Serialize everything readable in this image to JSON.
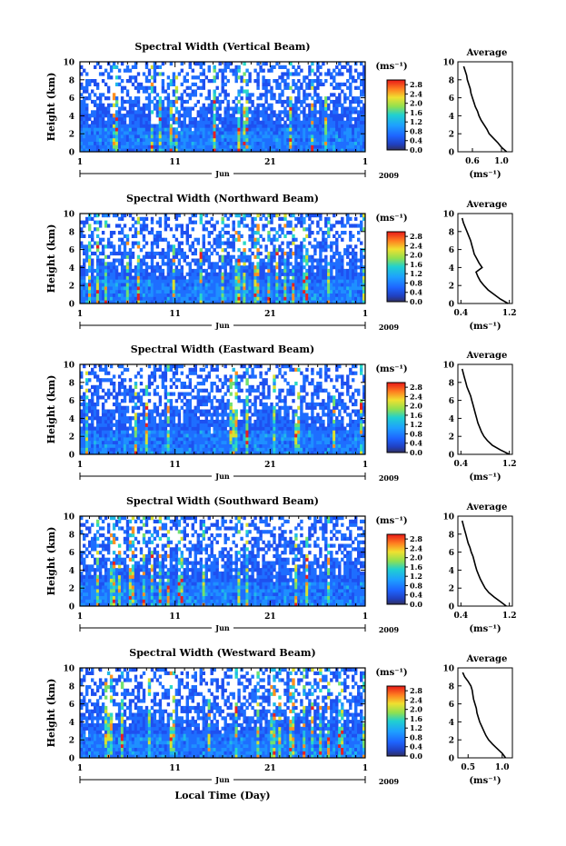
{
  "figure": {
    "xlabel": "Local Time (Day)"
  },
  "colorbar": {
    "unit_label": "(ms⁻¹)",
    "ticks": [
      "2.8",
      "2.4",
      "2.0",
      "1.6",
      "1.2",
      "0.8",
      "0.4",
      "0.0"
    ]
  },
  "chart_data": [
    {
      "type": "heatmap",
      "title": "Spectral Width (Vertical Beam)",
      "ylabel": "Height (km)",
      "ylim": [
        0,
        10
      ],
      "yticks": [
        "0",
        "2",
        "4",
        "6",
        "8",
        "10"
      ],
      "xticks": [
        "1",
        "11",
        "21",
        "1"
      ],
      "xlim_days": [
        1,
        31
      ],
      "month_label": "Jun",
      "year_label": "2009",
      "clim": [
        0.0,
        3.0
      ],
      "profile": {
        "title": "Average",
        "xlabel": "(ms⁻¹)",
        "xticks": [
          "0.6",
          "1.0"
        ],
        "xlim": [
          0.4,
          1.15
        ],
        "height_km": [
          0,
          0.5,
          1,
          1.5,
          2,
          2.5,
          3,
          3.5,
          4,
          4.5,
          5,
          5.5,
          6,
          6.5,
          7,
          7.5,
          8,
          8.5,
          9,
          9.5
        ],
        "value": [
          1.07,
          1.0,
          0.95,
          0.89,
          0.83,
          0.8,
          0.76,
          0.72,
          0.69,
          0.67,
          0.64,
          0.62,
          0.6,
          0.58,
          0.57,
          0.55,
          0.53,
          0.52,
          0.5,
          0.48
        ]
      }
    },
    {
      "type": "heatmap",
      "title": "Spectral Width (Northward Beam)",
      "ylabel": "Height (km)",
      "ylim": [
        0,
        10
      ],
      "yticks": [
        "0",
        "2",
        "4",
        "6",
        "8",
        "10"
      ],
      "xticks": [
        "1",
        "11",
        "21",
        "1"
      ],
      "xlim_days": [
        1,
        31
      ],
      "month_label": "Jun",
      "year_label": "2009",
      "clim": [
        0.0,
        3.0
      ],
      "profile": {
        "title": "Average",
        "xlabel": "(ms⁻¹)",
        "xticks": [
          "0.4",
          "1.2"
        ],
        "xlim": [
          0.35,
          1.25
        ],
        "height_km": [
          0,
          0.5,
          1,
          1.5,
          2,
          2.5,
          3,
          3.5,
          4,
          4.5,
          5,
          5.5,
          6,
          6.5,
          7,
          7.5,
          8,
          8.5,
          9,
          9.5
        ],
        "value": [
          1.18,
          1.05,
          0.95,
          0.85,
          0.78,
          0.72,
          0.68,
          0.65,
          0.75,
          0.7,
          0.66,
          0.62,
          0.6,
          0.58,
          0.56,
          0.53,
          0.5,
          0.47,
          0.44,
          0.42
        ]
      }
    },
    {
      "type": "heatmap",
      "title": "Spectral Width (Eastward Beam)",
      "ylabel": "Height (km)",
      "ylim": [
        0,
        10
      ],
      "yticks": [
        "0",
        "2",
        "4",
        "6",
        "8",
        "10"
      ],
      "xticks": [
        "1",
        "11",
        "21",
        "1"
      ],
      "xlim_days": [
        1,
        31
      ],
      "month_label": "Jun",
      "year_label": "2009",
      "clim": [
        0.0,
        3.0
      ],
      "profile": {
        "title": "Average",
        "xlabel": "(ms⁻¹)",
        "xticks": [
          "0.4",
          "1.2"
        ],
        "xlim": [
          0.35,
          1.25
        ],
        "height_km": [
          0,
          0.5,
          1,
          1.5,
          2,
          2.5,
          3,
          3.5,
          4,
          4.5,
          5,
          5.5,
          6,
          6.5,
          7,
          7.5,
          8,
          8.5,
          9,
          9.5
        ],
        "value": [
          1.2,
          1.05,
          0.92,
          0.84,
          0.78,
          0.74,
          0.71,
          0.68,
          0.66,
          0.64,
          0.62,
          0.6,
          0.58,
          0.56,
          0.53,
          0.5,
          0.48,
          0.46,
          0.44,
          0.42
        ]
      }
    },
    {
      "type": "heatmap",
      "title": "Spectral Width (Southward Beam)",
      "ylabel": "Height (km)",
      "ylim": [
        0,
        10
      ],
      "yticks": [
        "0",
        "2",
        "4",
        "6",
        "8",
        "10"
      ],
      "xticks": [
        "1",
        "11",
        "21",
        "1"
      ],
      "xlim_days": [
        1,
        31
      ],
      "month_label": "Jun",
      "year_label": "2009",
      "clim": [
        0.0,
        3.0
      ],
      "profile": {
        "title": "Average",
        "xlabel": "(ms⁻¹)",
        "xticks": [
          "0.4",
          "1.2"
        ],
        "xlim": [
          0.35,
          1.25
        ],
        "height_km": [
          0,
          0.5,
          1,
          1.5,
          2,
          2.5,
          3,
          3.5,
          4,
          4.5,
          5,
          5.5,
          6,
          6.5,
          7,
          7.5,
          8,
          8.5,
          9,
          9.5
        ],
        "value": [
          1.15,
          1.05,
          0.95,
          0.86,
          0.8,
          0.76,
          0.72,
          0.69,
          0.66,
          0.64,
          0.62,
          0.6,
          0.57,
          0.55,
          0.52,
          0.5,
          0.48,
          0.46,
          0.44,
          0.42
        ]
      }
    },
    {
      "type": "heatmap",
      "title": "Spectral Width (Westward Beam)",
      "ylabel": "Height (km)",
      "ylim": [
        0,
        10
      ],
      "yticks": [
        "0",
        "2",
        "4",
        "6",
        "8",
        "10"
      ],
      "xticks": [
        "1",
        "11",
        "21",
        "1"
      ],
      "xlim_days": [
        1,
        31
      ],
      "month_label": "Jun",
      "year_label": "2009",
      "clim": [
        0.0,
        3.0
      ],
      "profile": {
        "title": "Average",
        "xlabel": "(ms⁻¹)",
        "xticks": [
          "0.5",
          "1.0"
        ],
        "xlim": [
          0.35,
          1.15
        ],
        "height_km": [
          0,
          0.5,
          1,
          1.5,
          2,
          2.5,
          3,
          3.5,
          4,
          4.5,
          5,
          5.5,
          6,
          6.5,
          7,
          7.5,
          8,
          8.5,
          9,
          9.5
        ],
        "value": [
          1.05,
          1.0,
          0.93,
          0.86,
          0.8,
          0.76,
          0.73,
          0.7,
          0.67,
          0.65,
          0.63,
          0.62,
          0.6,
          0.58,
          0.57,
          0.56,
          0.54,
          0.5,
          0.45,
          0.42
        ]
      }
    }
  ]
}
